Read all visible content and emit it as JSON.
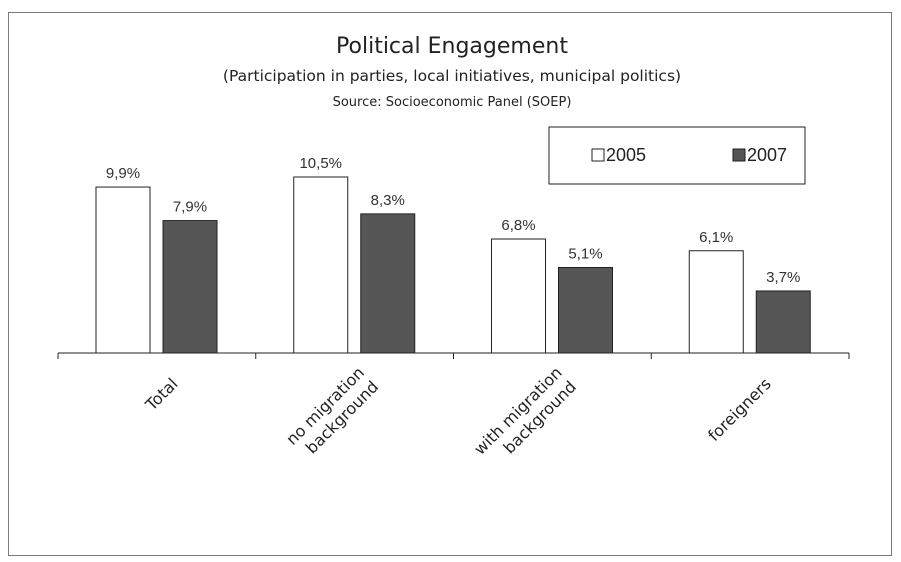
{
  "chart_data": {
    "type": "bar",
    "title": "Political Engagement",
    "subtitle": "(Participation in parties, local initiatives, municipal politics)",
    "source": "Source: Socioeconomic Panel (SOEP)",
    "categories": [
      [
        "Total"
      ],
      [
        "no migration",
        "background"
      ],
      [
        "with migration",
        "background"
      ],
      [
        "foreigners"
      ]
    ],
    "series": [
      {
        "name": "2005",
        "values": [
          9.9,
          10.5,
          6.8,
          6.1
        ],
        "labels": [
          "9,9%",
          "10,5%",
          "6,8%",
          "6,1%"
        ],
        "color": "#ffffff"
      },
      {
        "name": "2007",
        "values": [
          7.9,
          8.3,
          5.1,
          3.7
        ],
        "labels": [
          "7,9%",
          "8,3%",
          "5,1%",
          "3,7%"
        ],
        "color": "#565656"
      }
    ],
    "ylim": [
      0,
      10.5
    ],
    "grid": false,
    "legend_position": "top-right"
  }
}
